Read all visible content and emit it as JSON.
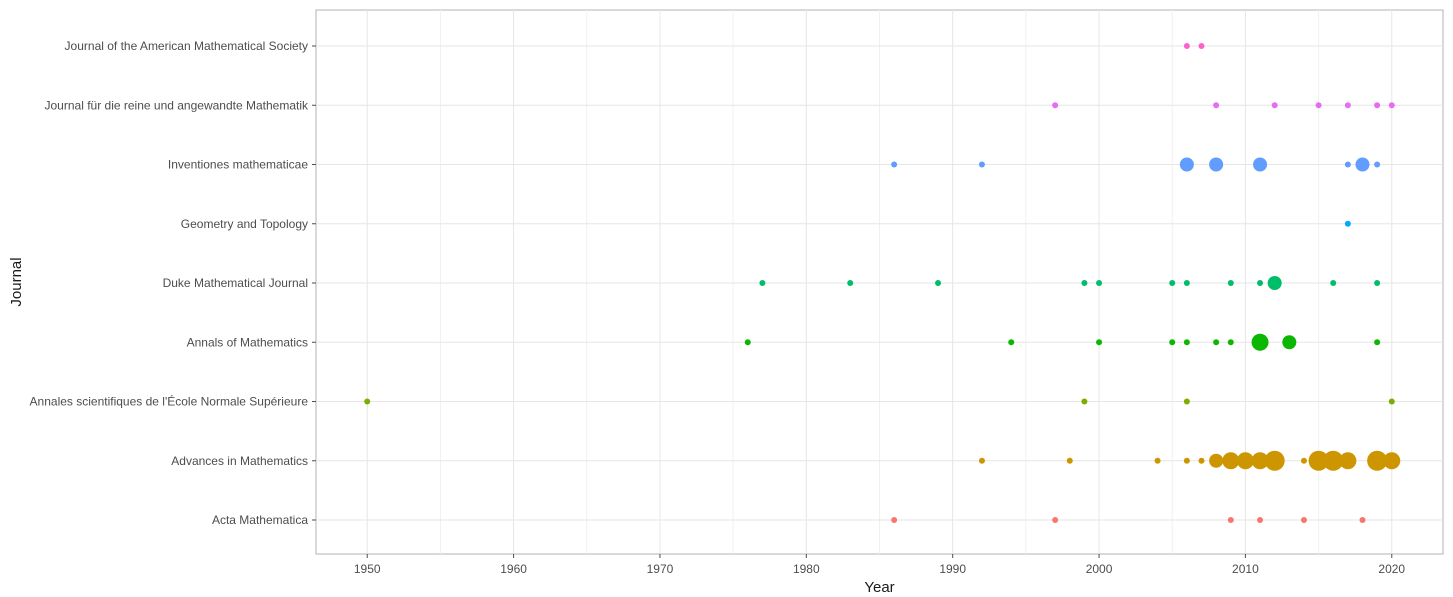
{
  "chart_data": {
    "type": "scatter",
    "title": "",
    "xlabel": "Year",
    "ylabel": "Journal",
    "xlim": [
      1946.5,
      2023.5
    ],
    "x_ticks": [
      1950,
      1960,
      1970,
      1980,
      1990,
      2000,
      2010,
      2020
    ],
    "x_tick_labels": [
      "1950",
      "1960",
      "1970",
      "1980",
      "1990",
      "2000",
      "2010",
      "2020"
    ],
    "grid": true,
    "legend": "none",
    "categories": [
      "Acta Mathematica",
      "Advances in Mathematics",
      "Annales scientifiques de l'École Normale Supérieure",
      "Annals of Mathematics",
      "Duke Mathematical Journal",
      "Geometry and Topology",
      "Inventiones mathematicae",
      "Journal für die reine und angewandte Mathematik",
      "Journal of the American Mathematical Society"
    ],
    "series": [
      {
        "category": "Acta Mathematica",
        "color": "#F8766D",
        "points": [
          {
            "year": 1986,
            "size": 1
          },
          {
            "year": 1997,
            "size": 1
          },
          {
            "year": 2009,
            "size": 1
          },
          {
            "year": 2011,
            "size": 1
          },
          {
            "year": 2014,
            "size": 1
          },
          {
            "year": 2018,
            "size": 1
          }
        ]
      },
      {
        "category": "Advances in Mathematics",
        "color": "#CD9600",
        "points": [
          {
            "year": 1992,
            "size": 1
          },
          {
            "year": 1998,
            "size": 1
          },
          {
            "year": 2004,
            "size": 1
          },
          {
            "year": 2006,
            "size": 1
          },
          {
            "year": 2007,
            "size": 1
          },
          {
            "year": 2008,
            "size": 3
          },
          {
            "year": 2009,
            "size": 4
          },
          {
            "year": 2010,
            "size": 4
          },
          {
            "year": 2011,
            "size": 4
          },
          {
            "year": 2012,
            "size": 5
          },
          {
            "year": 2014,
            "size": 1
          },
          {
            "year": 2015,
            "size": 5
          },
          {
            "year": 2016,
            "size": 5
          },
          {
            "year": 2017,
            "size": 4
          },
          {
            "year": 2019,
            "size": 5
          },
          {
            "year": 2020,
            "size": 4
          }
        ]
      },
      {
        "category": "Annales scientifiques de l'École Normale Supérieure",
        "color": "#7CAE00",
        "points": [
          {
            "year": 1950,
            "size": 1
          },
          {
            "year": 1999,
            "size": 1
          },
          {
            "year": 2006,
            "size": 1
          },
          {
            "year": 2020,
            "size": 1
          }
        ]
      },
      {
        "category": "Annals of Mathematics",
        "color": "#0CB702",
        "points": [
          {
            "year": 1976,
            "size": 1
          },
          {
            "year": 1994,
            "size": 1
          },
          {
            "year": 2000,
            "size": 1
          },
          {
            "year": 2005,
            "size": 1
          },
          {
            "year": 2006,
            "size": 1
          },
          {
            "year": 2008,
            "size": 1
          },
          {
            "year": 2009,
            "size": 1
          },
          {
            "year": 2011,
            "size": 4
          },
          {
            "year": 2013,
            "size": 3
          },
          {
            "year": 2019,
            "size": 1
          }
        ]
      },
      {
        "category": "Duke Mathematical Journal",
        "color": "#00BE67",
        "points": [
          {
            "year": 1977,
            "size": 1
          },
          {
            "year": 1983,
            "size": 1
          },
          {
            "year": 1989,
            "size": 1
          },
          {
            "year": 1999,
            "size": 1
          },
          {
            "year": 2000,
            "size": 1
          },
          {
            "year": 2005,
            "size": 1
          },
          {
            "year": 2006,
            "size": 1
          },
          {
            "year": 2009,
            "size": 1
          },
          {
            "year": 2011,
            "size": 1
          },
          {
            "year": 2012,
            "size": 3
          },
          {
            "year": 2016,
            "size": 1
          },
          {
            "year": 2019,
            "size": 1
          }
        ]
      },
      {
        "category": "Geometry and Topology",
        "color": "#00A9FF",
        "points": [
          {
            "year": 2017,
            "size": 1
          }
        ]
      },
      {
        "category": "Inventiones mathematicae",
        "color": "#619CFF",
        "points": [
          {
            "year": 1986,
            "size": 1
          },
          {
            "year": 1992,
            "size": 1
          },
          {
            "year": 2006,
            "size": 3
          },
          {
            "year": 2008,
            "size": 3
          },
          {
            "year": 2011,
            "size": 3
          },
          {
            "year": 2017,
            "size": 1
          },
          {
            "year": 2018,
            "size": 3
          },
          {
            "year": 2019,
            "size": 1
          }
        ]
      },
      {
        "category": "Journal für die reine und angewandte Mathematik",
        "color": "#E76BF3",
        "points": [
          {
            "year": 1997,
            "size": 1
          },
          {
            "year": 2008,
            "size": 1
          },
          {
            "year": 2012,
            "size": 1
          },
          {
            "year": 2015,
            "size": 1
          },
          {
            "year": 2017,
            "size": 1
          },
          {
            "year": 2019,
            "size": 1
          },
          {
            "year": 2020,
            "size": 1
          }
        ]
      },
      {
        "category": "Journal of the American Mathematical Society",
        "color": "#FF61CC",
        "points": [
          {
            "year": 2006,
            "size": 1
          },
          {
            "year": 2007,
            "size": 1
          }
        ]
      }
    ]
  }
}
